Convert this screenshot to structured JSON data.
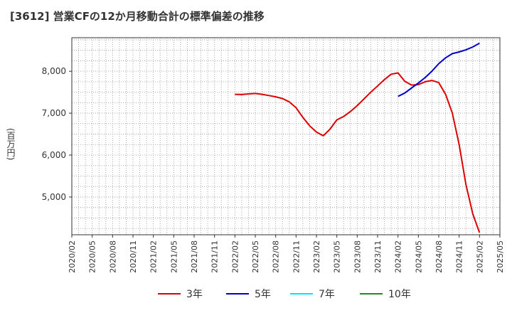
{
  "chart_data": {
    "type": "line",
    "title": "[3612]  営業CFの12か月移動合計の標準偏差の推移",
    "ylabel": "(百万円)",
    "xlabel": "",
    "ylim": [
      4100,
      8800
    ],
    "y_ticks": [
      {
        "value": 5000,
        "label": "5,000"
      },
      {
        "value": 6000,
        "label": "6,000"
      },
      {
        "value": 7000,
        "label": "7,000"
      },
      {
        "value": 8000,
        "label": "8,000"
      }
    ],
    "x_ticks": [
      "2020/02",
      "2020/05",
      "2020/08",
      "2020/11",
      "2021/02",
      "2021/05",
      "2021/08",
      "2021/11",
      "2022/02",
      "2022/05",
      "2022/08",
      "2022/11",
      "2023/02",
      "2023/05",
      "2023/08",
      "2023/11",
      "2024/02",
      "2024/05",
      "2024/08",
      "2024/11",
      "2025/02",
      "2025/05"
    ],
    "x_start": "2020/02",
    "grid": true,
    "legend_position": "bottom",
    "series": [
      {
        "name": "3年",
        "color": "#dd0000",
        "points": [
          [
            "2022/02",
            7450
          ],
          [
            "2022/03",
            7445
          ],
          [
            "2022/04",
            7460
          ],
          [
            "2022/05",
            7470
          ],
          [
            "2022/06",
            7450
          ],
          [
            "2022/07",
            7420
          ],
          [
            "2022/08",
            7390
          ],
          [
            "2022/09",
            7350
          ],
          [
            "2022/10",
            7270
          ],
          [
            "2022/11",
            7130
          ],
          [
            "2022/12",
            6900
          ],
          [
            "2023/01",
            6700
          ],
          [
            "2023/02",
            6550
          ],
          [
            "2023/03",
            6460
          ],
          [
            "2023/04",
            6620
          ],
          [
            "2023/05",
            6840
          ],
          [
            "2023/06",
            6920
          ],
          [
            "2023/07",
            7040
          ],
          [
            "2023/08",
            7180
          ],
          [
            "2023/09",
            7340
          ],
          [
            "2023/10",
            7500
          ],
          [
            "2023/11",
            7650
          ],
          [
            "2023/12",
            7800
          ],
          [
            "2024/01",
            7930
          ],
          [
            "2024/02",
            7960
          ],
          [
            "2024/03",
            7760
          ],
          [
            "2024/04",
            7670
          ],
          [
            "2024/05",
            7680
          ],
          [
            "2024/06",
            7750
          ],
          [
            "2024/07",
            7780
          ],
          [
            "2024/08",
            7730
          ],
          [
            "2024/09",
            7450
          ],
          [
            "2024/10",
            7000
          ],
          [
            "2024/11",
            6250
          ],
          [
            "2024/12",
            5300
          ],
          [
            "2025/01",
            4600
          ],
          [
            "2025/02",
            4150
          ]
        ]
      },
      {
        "name": "5年",
        "color": "#0000cc",
        "points": [
          [
            "2024/02",
            7400
          ],
          [
            "2024/03",
            7480
          ],
          [
            "2024/04",
            7600
          ],
          [
            "2024/05",
            7720
          ],
          [
            "2024/06",
            7850
          ],
          [
            "2024/07",
            8000
          ],
          [
            "2024/08",
            8180
          ],
          [
            "2024/09",
            8320
          ],
          [
            "2024/10",
            8420
          ],
          [
            "2024/11",
            8460
          ],
          [
            "2024/12",
            8510
          ],
          [
            "2025/01",
            8580
          ],
          [
            "2025/02",
            8670
          ]
        ]
      },
      {
        "name": "7年",
        "color": "#00e5ff",
        "points": []
      },
      {
        "name": "10年",
        "color": "#228b22",
        "points": []
      }
    ]
  }
}
